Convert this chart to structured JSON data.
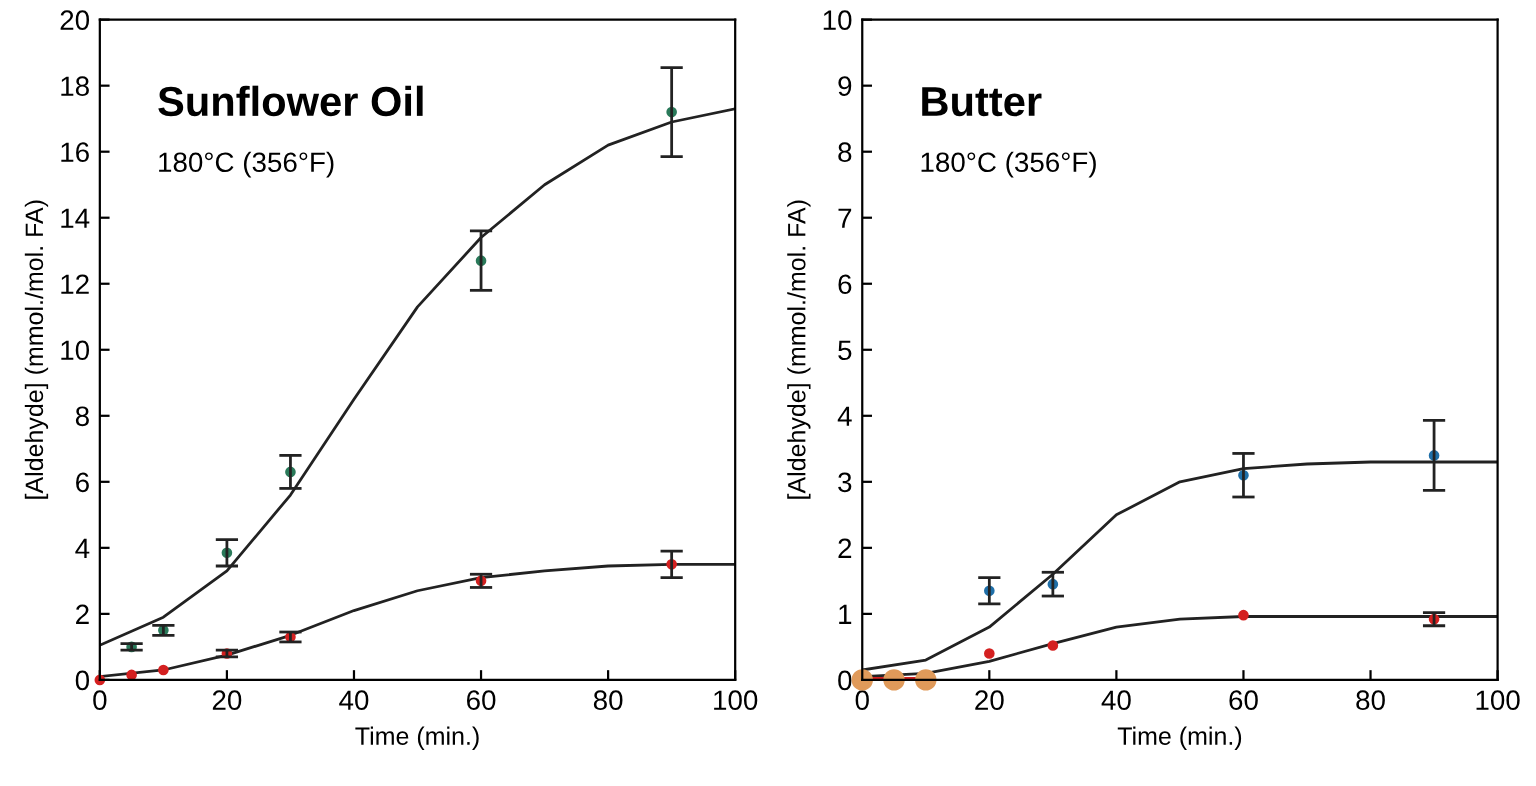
{
  "chart_data": [
    {
      "type": "scatter",
      "title": "Sunflower Oil",
      "subtitle": "180°C (356°F)",
      "xlabel": "Time (min.)",
      "ylabel": "[Aldehyde] (mmol./mol. FA)",
      "xlim": [
        0,
        100
      ],
      "ylim": [
        0,
        20
      ],
      "xticks": [
        0,
        20,
        40,
        60,
        80,
        100
      ],
      "yticks": [
        0,
        2,
        4,
        6,
        8,
        10,
        12,
        14,
        16,
        18,
        20
      ],
      "grid": false,
      "legend": false,
      "series": [
        {
          "type": "line",
          "color": "#222222",
          "marker": "none",
          "x": [
            0,
            10,
            20,
            30,
            40,
            50,
            60,
            70,
            80,
            90,
            100
          ],
          "values": [
            1.05,
            1.9,
            3.3,
            5.6,
            8.5,
            11.3,
            13.4,
            15.0,
            16.2,
            16.9,
            17.3
          ]
        },
        {
          "type": "line",
          "color": "#222222",
          "marker": "none",
          "x": [
            0,
            10,
            20,
            30,
            40,
            50,
            60,
            70,
            80,
            90,
            100
          ],
          "values": [
            0.1,
            0.3,
            0.75,
            1.35,
            2.1,
            2.7,
            3.1,
            3.3,
            3.45,
            3.5,
            3.5
          ]
        },
        {
          "color": "#2a7a5a",
          "marker": "circle",
          "x": [
            5,
            10,
            20,
            30,
            60,
            90
          ],
          "values": [
            1.0,
            1.5,
            3.85,
            6.3,
            12.7,
            17.2
          ],
          "errors": [
            0.1,
            0.15,
            0.4,
            0.5,
            0.9,
            1.35
          ]
        },
        {
          "color": "#d42020",
          "marker": "circle",
          "x": [
            0,
            5,
            10,
            20,
            30,
            60,
            90
          ],
          "values": [
            0,
            0.15,
            0.3,
            0.8,
            1.3,
            3.0,
            3.5
          ],
          "errors": [
            null,
            null,
            null,
            0.1,
            0.15,
            0.2,
            0.4
          ]
        }
      ]
    },
    {
      "type": "scatter",
      "title": "Butter",
      "subtitle": "180°C (356°F)",
      "xlabel": "Time (min.)",
      "ylabel": "[Aldehyde] (mmol./mol. FA)",
      "xlim": [
        0,
        100
      ],
      "ylim": [
        0,
        10
      ],
      "xticks": [
        0,
        20,
        40,
        60,
        80,
        100
      ],
      "yticks": [
        0,
        1,
        2,
        3,
        4,
        5,
        6,
        7,
        8,
        9,
        10
      ],
      "grid": false,
      "legend": false,
      "series": [
        {
          "type": "line",
          "color": "#222222",
          "marker": "none",
          "x": [
            0,
            10,
            20,
            30,
            40,
            50,
            60,
            70,
            80,
            90,
            100
          ],
          "values": [
            0.15,
            0.3,
            0.8,
            1.6,
            2.5,
            3.0,
            3.2,
            3.27,
            3.3,
            3.3,
            3.3
          ]
        },
        {
          "type": "line",
          "color": "#222222",
          "marker": "none",
          "x": [
            0,
            10,
            20,
            30,
            40,
            50,
            60,
            70,
            80,
            90,
            100
          ],
          "values": [
            0.05,
            0.1,
            0.28,
            0.55,
            0.8,
            0.92,
            0.96,
            0.96,
            0.96,
            0.96,
            0.96
          ]
        },
        {
          "type": "line",
          "color": "#d42020",
          "marker": "circle",
          "x": [
            0,
            5,
            10
          ],
          "values": [
            0,
            0,
            0
          ]
        },
        {
          "type": "scatter",
          "color": "#e09a5a",
          "marker": "circle",
          "x": [
            0,
            5,
            10
          ],
          "values": [
            0,
            0,
            0
          ]
        },
        {
          "color": "#1f6fa8",
          "marker": "circle",
          "x": [
            20,
            30,
            60,
            90
          ],
          "values": [
            1.35,
            1.45,
            3.1,
            3.4
          ],
          "errors": [
            0.2,
            0.18,
            0.33,
            0.53
          ]
        },
        {
          "color": "#d42020",
          "marker": "circle",
          "x": [
            20,
            30,
            60,
            90
          ],
          "values": [
            0.4,
            0.52,
            0.98,
            0.92
          ],
          "errors": [
            null,
            null,
            null,
            0.1
          ]
        }
      ]
    }
  ]
}
